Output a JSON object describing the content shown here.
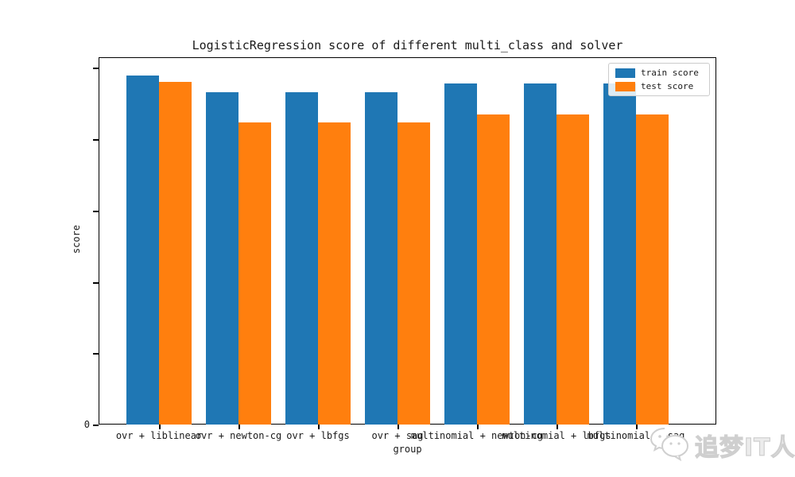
{
  "chart_data": {
    "type": "bar",
    "title": "LogisticRegression score of different multi_class and solver",
    "xlabel": "group",
    "ylabel": "score",
    "categories": [
      "ovr + liblinear",
      "ovr + newton-cg",
      "ovr + lbfgs",
      "ovr + sag",
      "multinomial + newton-cg",
      "multinomial + lbfgs",
      "multinomial + sag"
    ],
    "series": [
      {
        "name": "train score",
        "color": "#1f77b4",
        "values": [
          0.978,
          0.932,
          0.932,
          0.932,
          0.956,
          0.956,
          0.956
        ]
      },
      {
        "name": "test score",
        "color": "#ff7f0e",
        "values": [
          0.962,
          0.847,
          0.847,
          0.847,
          0.869,
          0.869,
          0.869
        ]
      }
    ],
    "ylim": [
      0,
      1.03
    ],
    "y_ticks": [
      0,
      0.2,
      0.4,
      0.6,
      0.8,
      1.0
    ],
    "y_tick_labels": [
      "0",
      "",
      "",
      "",
      "",
      ""
    ],
    "legend_position": "upper right",
    "grid": false
  },
  "legend": {
    "items": [
      {
        "label": "train score",
        "color": "#1f77b4"
      },
      {
        "label": "test score",
        "color": "#ff7f0e"
      }
    ]
  },
  "watermark": {
    "icon": "wechat-icon",
    "text": "追梦IT人",
    "color": "#cfcfcf"
  }
}
